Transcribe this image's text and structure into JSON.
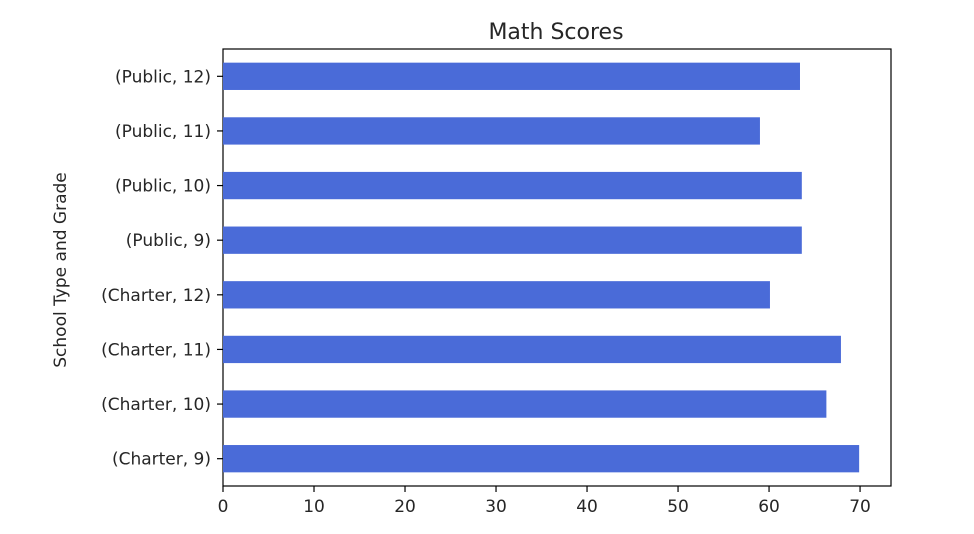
{
  "chart_data": {
    "type": "bar",
    "orientation": "horizontal",
    "title": "Math Scores",
    "xlabel": "",
    "ylabel": "School Type and Grade",
    "categories": [
      "(Charter, 9)",
      "(Charter, 10)",
      "(Charter, 11)",
      "(Charter, 12)",
      "(Public, 9)",
      "(Public, 10)",
      "(Public, 11)",
      "(Public, 12)"
    ],
    "values": [
      69.9,
      66.3,
      67.9,
      60.1,
      63.6,
      63.6,
      59.0,
      63.4
    ],
    "xlim": [
      0,
      73.4
    ],
    "xticks": [
      0,
      10,
      20,
      30,
      40,
      50,
      60,
      70
    ],
    "grid": false,
    "legend": "none",
    "bar_color": "#4a6bd8"
  }
}
